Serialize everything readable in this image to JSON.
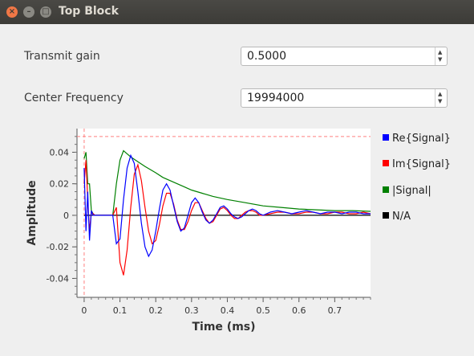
{
  "window": {
    "title": "Top Block"
  },
  "controls": {
    "transmit_gain": {
      "label": "Transmit gain",
      "value": "0.5000"
    },
    "center_frequency": {
      "label": "Center Frequency",
      "value": "19994000"
    }
  },
  "chart_data": {
    "type": "line",
    "xlabel": "Time (ms)",
    "ylabel": "Amplitude",
    "xlim": [
      -0.02,
      0.8
    ],
    "ylim": [
      -0.052,
      0.055
    ],
    "x_ticks": [
      "0",
      "0.1",
      "0.2",
      "0.3",
      "0.4",
      "0.5",
      "0.6",
      "0.7"
    ],
    "y_ticks": [
      "0.04",
      "0.02",
      "0",
      "-0.02",
      "-0.04"
    ],
    "trigger_level": 0.05,
    "trigger_time": 0,
    "grid": false,
    "legend_position": "right",
    "series": [
      {
        "name": "Re{Signal}",
        "color": "#0000ff",
        "x": [
          0,
          0.005,
          0.01,
          0.015,
          0.02,
          0.025,
          0.03,
          0.04,
          0.05,
          0.06,
          0.07,
          0.08,
          0.09,
          0.1,
          0.11,
          0.12,
          0.13,
          0.14,
          0.15,
          0.16,
          0.17,
          0.18,
          0.19,
          0.2,
          0.21,
          0.22,
          0.23,
          0.24,
          0.25,
          0.26,
          0.27,
          0.28,
          0.29,
          0.3,
          0.31,
          0.32,
          0.33,
          0.34,
          0.35,
          0.36,
          0.37,
          0.38,
          0.39,
          0.4,
          0.41,
          0.42,
          0.43,
          0.44,
          0.45,
          0.46,
          0.47,
          0.48,
          0.49,
          0.5,
          0.52,
          0.54,
          0.56,
          0.58,
          0.6,
          0.62,
          0.64,
          0.66,
          0.68,
          0.7,
          0.72,
          0.74,
          0.76,
          0.78,
          0.8
        ],
        "y": [
          0.03,
          -0.01,
          0.015,
          -0.016,
          0.003,
          0,
          0,
          0,
          0,
          0,
          0,
          0,
          -0.018,
          -0.015,
          0.01,
          0.03,
          0.038,
          0.033,
          0.015,
          -0.005,
          -0.02,
          -0.026,
          -0.022,
          -0.01,
          0.004,
          0.016,
          0.02,
          0.016,
          0.006,
          -0.004,
          -0.01,
          -0.008,
          0,
          0.008,
          0.011,
          0.008,
          0.002,
          -0.003,
          -0.005,
          -0.003,
          0.001,
          0.005,
          0.006,
          0.004,
          0.001,
          -0.001,
          -0.002,
          -0.001,
          0.001,
          0.003,
          0.004,
          0.003,
          0.001,
          0,
          0.002,
          0.003,
          0.002,
          0.001,
          0.002,
          0.003,
          0.002,
          0.001,
          0.002,
          0.002,
          0.001,
          0.002,
          0.002,
          0.001,
          0.001
        ]
      },
      {
        "name": "Im{Signal}",
        "color": "#ff0000",
        "x": [
          0,
          0.005,
          0.01,
          0.015,
          0.02,
          0.025,
          0.03,
          0.04,
          0.05,
          0.06,
          0.07,
          0.08,
          0.09,
          0.1,
          0.11,
          0.12,
          0.13,
          0.14,
          0.15,
          0.16,
          0.17,
          0.18,
          0.19,
          0.2,
          0.21,
          0.22,
          0.23,
          0.24,
          0.25,
          0.26,
          0.27,
          0.28,
          0.29,
          0.3,
          0.31,
          0.32,
          0.33,
          0.34,
          0.35,
          0.36,
          0.37,
          0.38,
          0.39,
          0.4,
          0.41,
          0.42,
          0.43,
          0.44,
          0.45,
          0.46,
          0.47,
          0.48,
          0.49,
          0.5,
          0.52,
          0.54,
          0.56,
          0.58,
          0.6,
          0.62,
          0.64,
          0.66,
          0.68,
          0.7,
          0.72,
          0.74,
          0.76,
          0.78,
          0.8
        ],
        "y": [
          0.02,
          0.035,
          0.01,
          -0.01,
          0.002,
          0.001,
          0,
          0,
          0,
          0,
          0,
          0,
          0.005,
          -0.03,
          -0.038,
          -0.022,
          0.005,
          0.026,
          0.032,
          0.022,
          0.005,
          -0.01,
          -0.018,
          -0.016,
          -0.006,
          0.006,
          0.014,
          0.014,
          0.007,
          -0.003,
          -0.009,
          -0.009,
          -0.004,
          0.003,
          0.008,
          0.008,
          0.003,
          -0.002,
          -0.005,
          -0.004,
          0,
          0.004,
          0.005,
          0.003,
          0,
          -0.002,
          -0.002,
          0,
          0.002,
          0.003,
          0.003,
          0.002,
          0,
          0,
          0.001,
          0.002,
          0.002,
          0.001,
          0.001,
          0.002,
          0.002,
          0.001,
          0.001,
          0.002,
          0.002,
          0.001,
          0.001,
          0.002,
          0.001
        ]
      },
      {
        "name": "|Signal|",
        "color": "#008000",
        "x": [
          0,
          0.005,
          0.01,
          0.015,
          0.02,
          0.025,
          0.03,
          0.04,
          0.05,
          0.06,
          0.07,
          0.08,
          0.09,
          0.1,
          0.11,
          0.12,
          0.13,
          0.15,
          0.17,
          0.2,
          0.22,
          0.25,
          0.28,
          0.3,
          0.33,
          0.36,
          0.4,
          0.45,
          0.5,
          0.55,
          0.6,
          0.65,
          0.7,
          0.75,
          0.8
        ],
        "y": [
          0.036,
          0.04,
          0.02,
          0.02,
          0.003,
          0.001,
          0,
          0,
          0,
          0,
          0,
          0,
          0.02,
          0.035,
          0.041,
          0.039,
          0.037,
          0.034,
          0.031,
          0.027,
          0.024,
          0.021,
          0.018,
          0.016,
          0.014,
          0.012,
          0.01,
          0.008,
          0.006,
          0.005,
          0.004,
          0.0035,
          0.003,
          0.003,
          0.0025
        ]
      },
      {
        "name": "N/A",
        "color": "#000000",
        "x": [
          0,
          0.8
        ],
        "y": [
          0,
          0
        ]
      }
    ]
  }
}
